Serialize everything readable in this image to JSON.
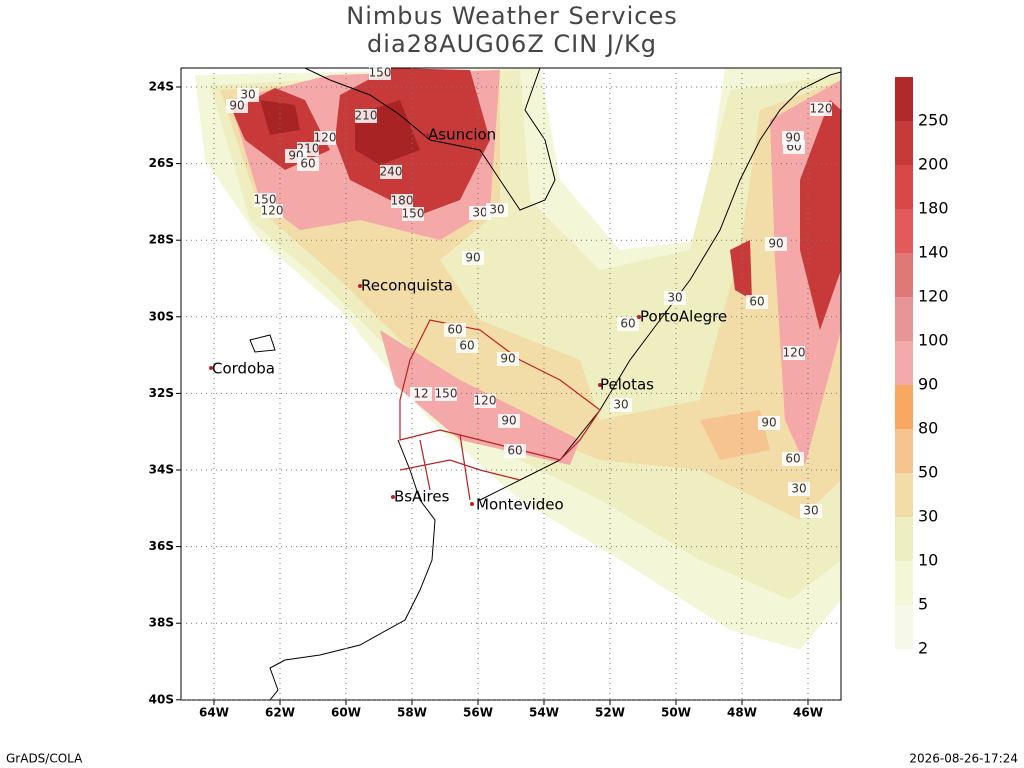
{
  "header": {
    "title": "Nimbus Weather Services",
    "subtitle": "dia28AUG06Z CIN J/Kg"
  },
  "map": {
    "lat_ticks": [
      "24S",
      "26S",
      "28S",
      "30S",
      "32S",
      "34S",
      "36S",
      "38S",
      "40S"
    ],
    "lon_ticks": [
      "64W",
      "62W",
      "60W",
      "58W",
      "56W",
      "54W",
      "52W",
      "50W",
      "48W",
      "46W"
    ]
  },
  "cities": [
    "Asuncion",
    "Reconquista",
    "Cordoba",
    "PortoAlegre",
    "Pelotas",
    "BsAires",
    "Montevideo"
  ],
  "contour_labels": [
    "150",
    "30",
    "90",
    "210",
    "120",
    "210",
    "90",
    "60",
    "240",
    "150",
    "120",
    "180",
    "150",
    "30",
    "30",
    "90",
    "60",
    "60",
    "90",
    "12",
    "150",
    "120",
    "90",
    "60",
    "30",
    "60",
    "30",
    "60",
    "90",
    "120",
    "90",
    "60",
    "120",
    "90",
    "60",
    "30",
    "30"
  ],
  "colorbar": {
    "levels": [
      250,
      200,
      180,
      140,
      120,
      100,
      90,
      80,
      50,
      30,
      10,
      5,
      2
    ],
    "colors": [
      "#b02a2a",
      "#c63a3a",
      "#d84848",
      "#e35a5a",
      "#e07878",
      "#e89595",
      "#f4aaaa",
      "#f8a860",
      "#f5c490",
      "#f2dca8",
      "#eeeec0",
      "#f4f6d8",
      "#f7f9e8"
    ]
  },
  "footer": {
    "left": "GrADS/COLA",
    "right": "2026-08-26-17:24"
  }
}
